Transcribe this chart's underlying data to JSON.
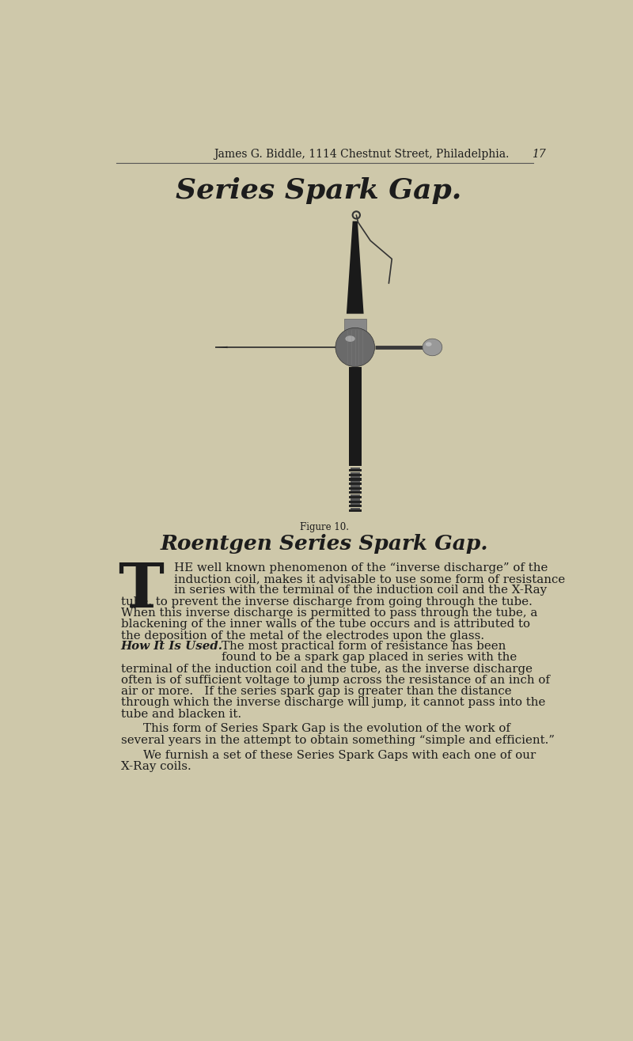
{
  "bg_color": "#cec8aa",
  "header_text": "James G. Biddle, 1114 Chestnut Street, Philadelphia.",
  "header_page": "17",
  "title": "Series Spark Gap.",
  "figure_caption": "Figure 10.",
  "subtitle": "Roentgen Series Spark Gap.",
  "text_color": "#1c1c1c",
  "header_color": "#1c1c1c",
  "line_color": "#555555",
  "device_color": "#1e1e1e",
  "sphere_color": "#555555",
  "sphere_highlight": "#aaaaaa",
  "right_ball_color": "#888888",
  "wire_color": "#333333",
  "thread_color": "#2a2a2a"
}
